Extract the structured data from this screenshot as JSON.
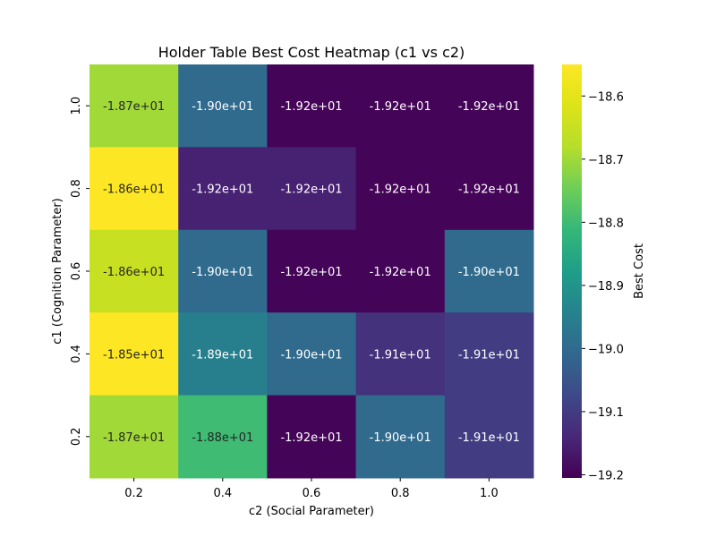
{
  "chart_data": {
    "type": "heatmap",
    "title": "Holder Table Best Cost Heatmap (c1 vs c2)",
    "xlabel": "c2 (Social Parameter)",
    "ylabel": "c1 (Cognition Parameter)",
    "x_categories": [
      "0.2",
      "0.4",
      "0.6",
      "0.8",
      "1.0"
    ],
    "y_categories": [
      "1.0",
      "0.8",
      "0.6",
      "0.4",
      "0.2"
    ],
    "values": [
      [
        -18.7,
        -19.0,
        -19.2,
        -19.2,
        -19.2
      ],
      [
        -18.55,
        -19.15,
        -19.15,
        -19.2,
        -19.2
      ],
      [
        -18.65,
        -19.0,
        -19.2,
        -19.2,
        -19.0
      ],
      [
        -18.5,
        -18.95,
        -19.0,
        -19.12,
        -19.1
      ],
      [
        -18.7,
        -18.8,
        -19.2,
        -19.0,
        -19.1
      ]
    ],
    "cell_labels": [
      [
        "-1.87e+01",
        "-1.90e+01",
        "-1.92e+01",
        "-1.92e+01",
        "-1.92e+01"
      ],
      [
        "-1.86e+01",
        "-1.92e+01",
        "-1.92e+01",
        "-1.92e+01",
        "-1.92e+01"
      ],
      [
        "-1.86e+01",
        "-1.90e+01",
        "-1.92e+01",
        "-1.92e+01",
        "-1.90e+01"
      ],
      [
        "-1.85e+01",
        "-1.89e+01",
        "-1.90e+01",
        "-1.91e+01",
        "-1.91e+01"
      ],
      [
        "-1.87e+01",
        "-1.88e+01",
        "-1.92e+01",
        "-1.90e+01",
        "-1.91e+01"
      ]
    ],
    "colorbar": {
      "label": "Best Cost",
      "colormap": "viridis",
      "vmin": -19.205,
      "vmax": -18.55,
      "ticks": [
        -18.6,
        -18.7,
        -18.8,
        -18.9,
        -19.0,
        -19.1,
        -19.2
      ],
      "tick_labels": [
        "−18.6",
        "−18.7",
        "−18.8",
        "−18.9",
        "−19.0",
        "−19.1",
        "−19.2"
      ]
    }
  }
}
